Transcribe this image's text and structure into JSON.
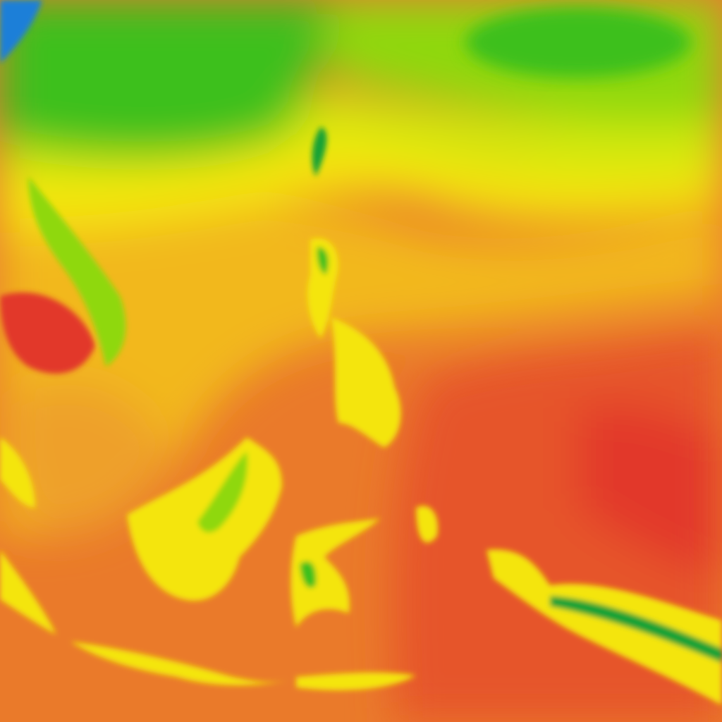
{
  "map": {
    "palette": {
      "blue": "#1f7fd8",
      "dark_green": "#12a236",
      "green": "#3cc01c",
      "light_green": "#8fd80e",
      "yellow_green": "#d2e80a",
      "yellow": "#f4e50a",
      "amber": "#f2b81e",
      "light_orange": "#eea02a",
      "orange": "#ea7a2a",
      "red_orange": "#e6552a",
      "red": "#e2372a"
    }
  }
}
